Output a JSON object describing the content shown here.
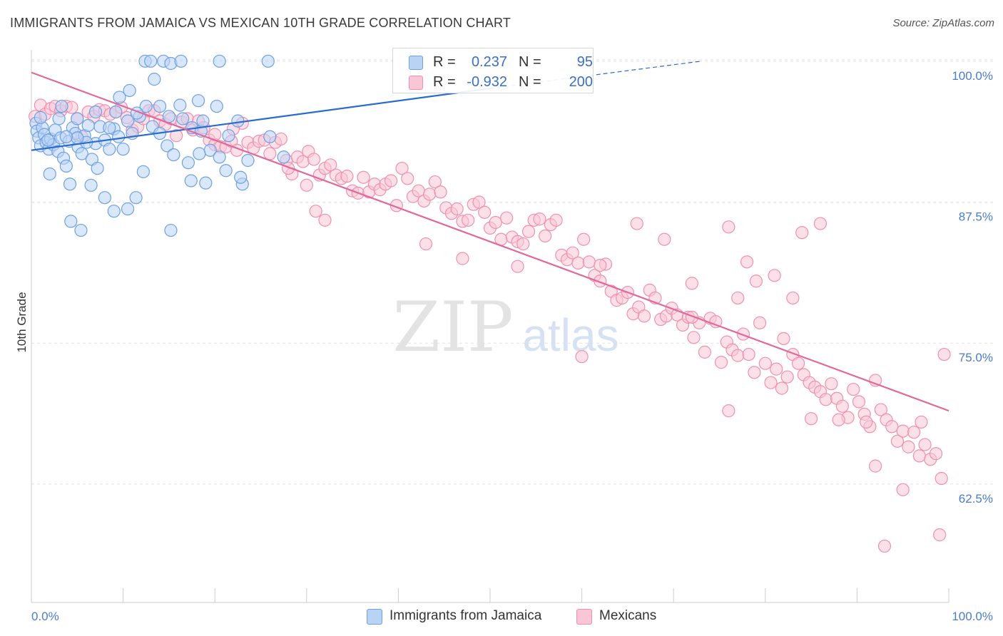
{
  "title": "IMMIGRANTS FROM JAMAICA VS MEXICAN 10TH GRADE CORRELATION CHART",
  "source": "Source: ZipAtlas.com",
  "watermark": {
    "zip": "ZIP",
    "atlas": "atlas"
  },
  "colors": {
    "jamaica": "#6fa0e0",
    "jamaica_fill": "#b9d3f5",
    "jamaica_line": "#2a6ccc",
    "mexican": "#f08fb0",
    "mexican_fill": "#f9c6d6",
    "mexican_line": "#e0689a",
    "tick_text": "#4a7cc9"
  },
  "legend": {
    "rows": [
      {
        "r_label": "R =",
        "r_value": "0.237",
        "n_label": "N =",
        "n_value": "95"
      },
      {
        "r_label": "R =",
        "r_value": "-0.932",
        "n_label": "N =",
        "n_value": "200"
      }
    ]
  },
  "bottom_legend": {
    "jamaica": "Immigrants from Jamaica",
    "mexican": "Mexicans"
  },
  "chart_data": {
    "type": "scatter",
    "xlabel": "",
    "ylabel": "10th Grade",
    "xlim": [
      0,
      100
    ],
    "ylim": [
      52,
      101
    ],
    "x_tick_labels": [
      "0.0%",
      "100.0%"
    ],
    "y_ticks": [
      {
        "value": 62.5,
        "label": "62.5%"
      },
      {
        "value": 75.0,
        "label": "75.0%"
      },
      {
        "value": 87.5,
        "label": "87.5%"
      },
      {
        "value": 100.0,
        "label": "100.0%"
      }
    ],
    "grid": true,
    "series": [
      {
        "name": "Immigrants from Jamaica",
        "r": 0.237,
        "n": 95,
        "trend": {
          "x0": 0,
          "y0": 92.1,
          "x1": 72,
          "y1": 100.0,
          "dashed_to_x": 73
        },
        "points": [
          [
            0.5,
            94.5
          ],
          [
            0.6,
            93.8
          ],
          [
            0.8,
            93.2
          ],
          [
            1.0,
            92.5
          ],
          [
            1.2,
            94.1
          ],
          [
            1.4,
            93.5
          ],
          [
            1.6,
            92.8
          ],
          [
            1.9,
            92.2
          ],
          [
            2.1,
            93.1
          ],
          [
            2.4,
            92.6
          ],
          [
            2.6,
            93.9
          ],
          [
            2.9,
            92.0
          ],
          [
            3.2,
            93.2
          ],
          [
            3.5,
            91.4
          ],
          [
            3.8,
            90.7
          ],
          [
            4.1,
            92.9
          ],
          [
            4.5,
            94.1
          ],
          [
            4.8,
            93.6
          ],
          [
            5.1,
            92.4
          ],
          [
            5.5,
            91.8
          ],
          [
            5.8,
            93.4
          ],
          [
            6.2,
            94.3
          ],
          [
            6.6,
            91.3
          ],
          [
            7.0,
            92.7
          ],
          [
            7.5,
            94.2
          ],
          [
            8.0,
            93.0
          ],
          [
            8.5,
            92.2
          ],
          [
            9.0,
            94.0
          ],
          [
            9.5,
            93.3
          ],
          [
            10.0,
            92.2
          ],
          [
            10.5,
            94.7
          ],
          [
            11.0,
            93.6
          ],
          [
            11.8,
            95.1
          ],
          [
            12.5,
            96.0
          ],
          [
            13.2,
            94.2
          ],
          [
            14.0,
            93.6
          ],
          [
            14.8,
            92.5
          ],
          [
            15.5,
            91.7
          ],
          [
            16.5,
            94.9
          ],
          [
            17.5,
            94.1
          ],
          [
            18.5,
            93.8
          ],
          [
            19.5,
            92.1
          ],
          [
            20.5,
            91.5
          ],
          [
            21.5,
            93.4
          ],
          [
            22.5,
            94.7
          ],
          [
            3.0,
            94.9
          ],
          [
            5.0,
            94.9
          ],
          [
            2.0,
            90.0
          ],
          [
            4.2,
            89.1
          ],
          [
            6.5,
            89.0
          ],
          [
            8.0,
            87.9
          ],
          [
            9.0,
            86.7
          ],
          [
            10.5,
            86.9
          ],
          [
            12.2,
            90.2
          ],
          [
            7.2,
            90.5
          ],
          [
            4.3,
            85.8
          ],
          [
            5.4,
            85.0
          ],
          [
            11.4,
            87.9
          ],
          [
            15.2,
            85.0
          ],
          [
            17.1,
            91.0
          ],
          [
            17.4,
            89.4
          ],
          [
            19.0,
            89.2
          ],
          [
            23.0,
            89.1
          ],
          [
            21.2,
            90.3
          ],
          [
            23.6,
            91.2
          ],
          [
            22.8,
            89.7
          ],
          [
            26.0,
            93.3
          ],
          [
            27.5,
            91.5
          ],
          [
            9.6,
            96.8
          ],
          [
            12.4,
            100.0
          ],
          [
            13.0,
            100.0
          ],
          [
            14.4,
            100.0
          ],
          [
            15.2,
            99.8
          ],
          [
            13.4,
            98.4
          ],
          [
            14.0,
            96.0
          ],
          [
            16.2,
            96.1
          ],
          [
            18.7,
            94.7
          ],
          [
            20.2,
            96.0
          ],
          [
            10.7,
            97.4
          ],
          [
            9.2,
            95.5
          ],
          [
            11.5,
            95.4
          ],
          [
            7.0,
            95.5
          ],
          [
            6.0,
            92.8
          ],
          [
            5.0,
            93.2
          ],
          [
            3.8,
            93.3
          ],
          [
            1.8,
            93.0
          ],
          [
            3.3,
            96.0
          ],
          [
            20.5,
            100.0
          ],
          [
            25.8,
            100.0
          ],
          [
            8.5,
            94.1
          ],
          [
            18.3,
            91.8
          ],
          [
            1.0,
            95.0
          ],
          [
            16.3,
            100.0
          ],
          [
            18.2,
            96.5
          ],
          [
            15.0,
            95.1
          ]
        ]
      },
      {
        "name": "Mexicans",
        "r": -0.932,
        "n": 200,
        "trend": {
          "x0": 0,
          "y0": 99.0,
          "x1": 100,
          "y1": 69.0
        },
        "points": [
          [
            0.4,
            95.1
          ],
          [
            1.0,
            96.1
          ],
          [
            1.5,
            95.3
          ],
          [
            2.1,
            95.8
          ],
          [
            2.6,
            96.0
          ],
          [
            3.2,
            95.6
          ],
          [
            3.8,
            96.0
          ],
          [
            4.4,
            95.9
          ],
          [
            5.0,
            94.9
          ],
          [
            5.5,
            93.3
          ],
          [
            6.2,
            95.5
          ],
          [
            6.8,
            95.1
          ],
          [
            7.4,
            95.7
          ],
          [
            8.0,
            95.6
          ],
          [
            8.6,
            95.3
          ],
          [
            9.2,
            95.5
          ],
          [
            9.8,
            95.9
          ],
          [
            10.4,
            95.0
          ],
          [
            11.0,
            93.9
          ],
          [
            11.6,
            94.2
          ],
          [
            12.2,
            94.9
          ],
          [
            12.8,
            95.6
          ],
          [
            13.4,
            95.6
          ],
          [
            14.0,
            94.7
          ],
          [
            14.6,
            94.4
          ],
          [
            15.2,
            94.9
          ],
          [
            15.8,
            93.4
          ],
          [
            16.4,
            94.6
          ],
          [
            17.0,
            94.9
          ],
          [
            17.6,
            93.9
          ],
          [
            18.2,
            94.7
          ],
          [
            18.8,
            94.1
          ],
          [
            19.4,
            93.0
          ],
          [
            20.0,
            92.6
          ],
          [
            20.6,
            92.4
          ],
          [
            21.2,
            92.4
          ],
          [
            21.8,
            92.9
          ],
          [
            22.4,
            92.1
          ],
          [
            23.0,
            94.5
          ],
          [
            23.6,
            92.8
          ],
          [
            24.2,
            92.3
          ],
          [
            24.8,
            92.9
          ],
          [
            25.4,
            93.0
          ],
          [
            26.0,
            91.8
          ],
          [
            26.6,
            92.8
          ],
          [
            27.2,
            93.1
          ],
          [
            27.8,
            91.2
          ],
          [
            28.4,
            90.0
          ],
          [
            29.0,
            91.5
          ],
          [
            29.6,
            91.1
          ],
          [
            30.2,
            92.0
          ],
          [
            30.8,
            91.3
          ],
          [
            31.4,
            89.9
          ],
          [
            32.0,
            90.5
          ],
          [
            32.6,
            90.8
          ],
          [
            33.2,
            89.9
          ],
          [
            33.8,
            89.6
          ],
          [
            34.4,
            89.8
          ],
          [
            35.0,
            88.5
          ],
          [
            35.6,
            88.3
          ],
          [
            36.2,
            89.7
          ],
          [
            36.8,
            88.4
          ],
          [
            37.4,
            89.1
          ],
          [
            38.0,
            88.6
          ],
          [
            38.6,
            89.1
          ],
          [
            39.2,
            89.4
          ],
          [
            39.8,
            87.2
          ],
          [
            40.4,
            90.5
          ],
          [
            41.0,
            89.6
          ],
          [
            41.6,
            88.0
          ],
          [
            42.2,
            88.5
          ],
          [
            42.8,
            87.6
          ],
          [
            43.4,
            88.2
          ],
          [
            44.0,
            89.3
          ],
          [
            44.6,
            88.4
          ],
          [
            45.2,
            87.0
          ],
          [
            45.8,
            86.5
          ],
          [
            46.4,
            86.9
          ],
          [
            47.0,
            85.8
          ],
          [
            47.6,
            85.9
          ],
          [
            48.2,
            87.3
          ],
          [
            48.8,
            87.5
          ],
          [
            49.4,
            86.6
          ],
          [
            50.0,
            85.2
          ],
          [
            50.6,
            85.7
          ],
          [
            51.2,
            84.2
          ],
          [
            51.8,
            86.1
          ],
          [
            52.4,
            84.4
          ],
          [
            53.0,
            84.0
          ],
          [
            53.6,
            83.8
          ],
          [
            54.2,
            84.9
          ],
          [
            54.8,
            85.9
          ],
          [
            55.4,
            86.0
          ],
          [
            56.0,
            84.5
          ],
          [
            56.6,
            85.5
          ],
          [
            57.2,
            85.9
          ],
          [
            57.8,
            82.8
          ],
          [
            58.4,
            82.4
          ],
          [
            59.0,
            83.0
          ],
          [
            59.6,
            82.1
          ],
          [
            60.2,
            84.2
          ],
          [
            60.8,
            82.2
          ],
          [
            61.4,
            81.0
          ],
          [
            62.0,
            80.5
          ],
          [
            62.6,
            82.0
          ],
          [
            63.2,
            79.6
          ],
          [
            63.8,
            78.8
          ],
          [
            64.4,
            79.0
          ],
          [
            65.0,
            79.5
          ],
          [
            65.6,
            77.6
          ],
          [
            66.2,
            78.2
          ],
          [
            66.8,
            77.4
          ],
          [
            67.4,
            79.7
          ],
          [
            68.0,
            79.0
          ],
          [
            68.6,
            77.1
          ],
          [
            69.2,
            77.4
          ],
          [
            69.8,
            78.1
          ],
          [
            70.4,
            77.5
          ],
          [
            71.0,
            76.6
          ],
          [
            71.6,
            77.3
          ],
          [
            72.2,
            75.5
          ],
          [
            72.8,
            76.8
          ],
          [
            73.4,
            74.2
          ],
          [
            74.0,
            77.2
          ],
          [
            74.6,
            76.9
          ],
          [
            75.2,
            73.3
          ],
          [
            75.8,
            75.1
          ],
          [
            76.4,
            74.4
          ],
          [
            77.0,
            73.9
          ],
          [
            77.6,
            75.8
          ],
          [
            78.2,
            74.0
          ],
          [
            78.8,
            72.4
          ],
          [
            79.4,
            76.8
          ],
          [
            80.0,
            73.2
          ],
          [
            80.6,
            71.5
          ],
          [
            81.2,
            72.7
          ],
          [
            81.8,
            71.0
          ],
          [
            82.4,
            72.0
          ],
          [
            83.0,
            74.0
          ],
          [
            83.6,
            73.2
          ],
          [
            84.2,
            72.2
          ],
          [
            84.8,
            71.5
          ],
          [
            85.4,
            71.1
          ],
          [
            86.0,
            70.7
          ],
          [
            86.6,
            70.0
          ],
          [
            87.2,
            71.4
          ],
          [
            87.8,
            70.1
          ],
          [
            88.4,
            69.4
          ],
          [
            89.0,
            68.4
          ],
          [
            89.6,
            70.9
          ],
          [
            90.2,
            69.8
          ],
          [
            90.8,
            68.7
          ],
          [
            91.4,
            67.6
          ],
          [
            92.0,
            71.7
          ],
          [
            92.6,
            69.1
          ],
          [
            93.2,
            68.2
          ],
          [
            93.8,
            67.6
          ],
          [
            94.4,
            66.3
          ],
          [
            95.0,
            67.2
          ],
          [
            95.6,
            65.8
          ],
          [
            96.2,
            67.1
          ],
          [
            96.8,
            65.0
          ],
          [
            97.4,
            66.0
          ],
          [
            98.0,
            64.7
          ],
          [
            98.6,
            65.2
          ],
          [
            99.2,
            63.0
          ],
          [
            20.0,
            93.5
          ],
          [
            22.0,
            94.0
          ],
          [
            28.0,
            90.5
          ],
          [
            30.0,
            89.0
          ],
          [
            31.0,
            86.7
          ],
          [
            32.0,
            85.9
          ],
          [
            43.0,
            83.8
          ],
          [
            47.0,
            82.5
          ],
          [
            53.0,
            81.8
          ],
          [
            62.0,
            81.9
          ],
          [
            66.0,
            85.6
          ],
          [
            69.0,
            84.2
          ],
          [
            72.0,
            80.3
          ],
          [
            76.0,
            85.3
          ],
          [
            78.0,
            82.2
          ],
          [
            81.0,
            81.0
          ],
          [
            83.0,
            79.0
          ],
          [
            84.0,
            84.8
          ],
          [
            86.0,
            85.6
          ],
          [
            88.0,
            68.2
          ],
          [
            91.0,
            68.0
          ],
          [
            92.0,
            64.1
          ],
          [
            95.0,
            62.0
          ],
          [
            99.0,
            58.0
          ],
          [
            93.0,
            57.0
          ],
          [
            60.0,
            73.8
          ],
          [
            72.0,
            77.3
          ],
          [
            76.0,
            69.0
          ],
          [
            77.0,
            79.0
          ],
          [
            79.0,
            80.5
          ],
          [
            82.0,
            75.4
          ],
          [
            85.0,
            68.3
          ],
          [
            97.0,
            68.0
          ],
          [
            99.5,
            74.0
          ]
        ]
      }
    ]
  }
}
